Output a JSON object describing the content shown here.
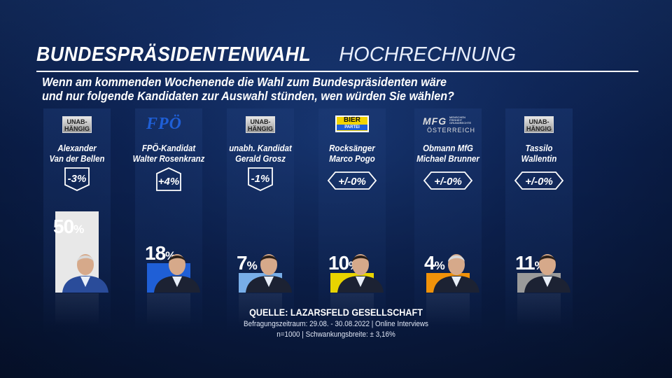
{
  "title_bold": "BUNDESPRÄSIDENTENWAHL",
  "title_light": "HOCHRECHNUNG",
  "question_line1": "Wenn am kommenden Wochenende die Wahl zum Bundespräsidenten wäre",
  "question_line2": "und nur folgende Kandidaten zur Auswahl stünden, wen würden Sie wählen?",
  "candidates": [
    {
      "logo": "badge",
      "logo_line1": "UNAB-",
      "logo_line2": "HÄNGIG",
      "name_line1": "Alexander",
      "name_line2": "Van der Bellen",
      "change": "-3%",
      "change_dir": "down",
      "value_text": "50",
      "color": "#e8e8e8"
    },
    {
      "logo": "fpoe",
      "logo_text": "FPÖ",
      "name_line1": "FPÖ-Kandidat",
      "name_line2": "Walter Rosenkranz",
      "change": "+4%",
      "change_dir": "up",
      "value_text": "18",
      "color": "#1f5fd6"
    },
    {
      "logo": "badge",
      "logo_line1": "UNAB-",
      "logo_line2": "HÄNGIG",
      "name_line1": "unabh. Kandidat",
      "name_line2": "Gerald Grosz",
      "change": "-1%",
      "change_dir": "down",
      "value_text": "7",
      "color": "#78aee8"
    },
    {
      "logo": "bier",
      "logo_line1": "BIER",
      "logo_line2": "PARTEI",
      "name_line1": "Rocksänger",
      "name_line2": "Marco Pogo",
      "change": "+/-0%",
      "change_dir": "same",
      "value_text": "10",
      "color": "#e8d400"
    },
    {
      "logo": "mfg",
      "logo_line1": "MFG",
      "logo_line2": "ÖSTERREICH",
      "logo_small1": "MENSCHEN",
      "logo_small2": "FREIHEIT",
      "logo_small3": "GRUNDRECHTE",
      "name_line1": "Obmann MfG",
      "name_line2": "Michael Brunner",
      "change": "+/-0%",
      "change_dir": "same",
      "value_text": "4",
      "color": "#f0920a"
    },
    {
      "logo": "badge",
      "logo_line1": "UNAB-",
      "logo_line2": "HÄNGIG",
      "name_line1": "Tassilo",
      "name_line2": "Wallentin",
      "change": "+/-0%",
      "change_dir": "same",
      "value_text": "11",
      "color": "#9a9a9a"
    }
  ],
  "pct_symbol": "%",
  "source_title": "QUELLE:  LAZARSFELD GESELLSCHAFT",
  "source_line1": "Befragungszeitraum: 29.08. - 30.08.2022 | Online Interviews",
  "source_line2": "n=1000 |  Schwankungsbreite: ± 3,16%",
  "chart_data": {
    "type": "bar",
    "title": "BUNDESPRÄSIDENTENWAHL HOCHRECHNUNG",
    "categories": [
      "Alexander Van der Bellen",
      "Walter Rosenkranz",
      "Gerald Grosz",
      "Marco Pogo",
      "Michael Brunner",
      "Tassilo Wallentin"
    ],
    "values": [
      50,
      18,
      7,
      10,
      4,
      11
    ],
    "changes": [
      "-3%",
      "+4%",
      "-1%",
      "+/-0%",
      "+/-0%",
      "+/-0%"
    ],
    "unit": "%",
    "ylim": [
      0,
      50
    ]
  }
}
